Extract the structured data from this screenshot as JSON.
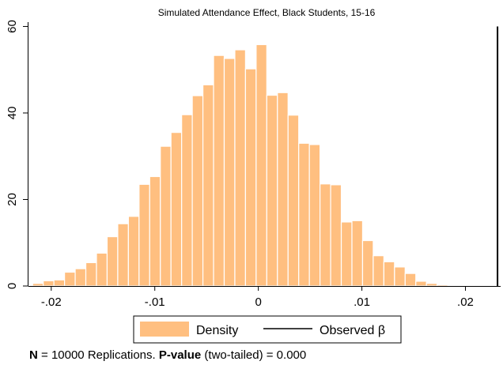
{
  "chart_data": {
    "type": "bar",
    "title": "Simulated Attendance Effect, Black Students, 15-16",
    "xlabel": "",
    "ylabel": "",
    "xlim": [
      -0.0222,
      0.0234
    ],
    "ylim": [
      0,
      61
    ],
    "x_ticks": [
      {
        "value": -0.02,
        "label": "-.02"
      },
      {
        "value": -0.01,
        "label": "-.01"
      },
      {
        "value": 0,
        "label": "0"
      },
      {
        "value": 0.01,
        "label": ".01"
      },
      {
        "value": 0.02,
        "label": ".02"
      }
    ],
    "y_ticks": [
      {
        "value": 0,
        "label": "0"
      },
      {
        "value": 20,
        "label": "20"
      },
      {
        "value": 40,
        "label": "40"
      },
      {
        "value": 60,
        "label": "60"
      }
    ],
    "grid": false,
    "bin_width": 0.001028,
    "bin_start": -0.0218,
    "series": [
      {
        "name": "Density",
        "color": "#ffbf80",
        "values": [
          0.6,
          1.2,
          1.4,
          3.2,
          4.0,
          5.4,
          7.6,
          11.4,
          14.4,
          16.1,
          23.5,
          25.3,
          32.3,
          35.5,
          39.6,
          44.0,
          46.5,
          53.3,
          52.6,
          54.6,
          50.2,
          55.8,
          44.1,
          44.7,
          39.5,
          33.0,
          32.7,
          23.6,
          23.4,
          14.8,
          15.1,
          10.5,
          7.0,
          5.6,
          4.4,
          2.9,
          1.1,
          0.6,
          0.3,
          0.2
        ]
      },
      {
        "name": "Observed β",
        "type": "vline",
        "color": "#000000",
        "x": 0.0231,
        "y_range": [
          0,
          60
        ]
      }
    ],
    "legend": {
      "position": "bottom-center",
      "entries": [
        "Density",
        "Observed β"
      ]
    }
  },
  "note": {
    "n_bold": "N",
    "n_text": " = 10000 Replications. ",
    "p_bold": "P-value",
    "p_text": " (two-tailed) = 0.000"
  }
}
